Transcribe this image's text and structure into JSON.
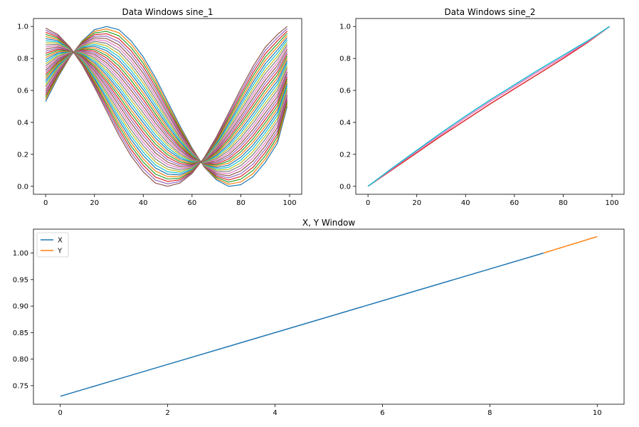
{
  "colors": [
    "#1f77b4",
    "#ff7f0e",
    "#2ca02c",
    "#d62728",
    "#9467bd",
    "#8c564b",
    "#e377c2",
    "#7f7f7f",
    "#bcbd22",
    "#17becf"
  ],
  "chart_data": [
    {
      "type": "line",
      "title": "Data Windows sine_1",
      "xlabel": "",
      "ylabel": "",
      "xlim": [
        -5,
        104.95
      ],
      "ylim": [
        -0.05,
        1.05
      ],
      "xticks": [
        0,
        20,
        40,
        60,
        80,
        100
      ],
      "xtick_labels": [
        "0",
        "20",
        "40",
        "60",
        "80",
        "100"
      ],
      "yticks": [
        0.0,
        0.2,
        0.4,
        0.6,
        0.8,
        1.0
      ],
      "ytick_labels": [
        "0.0",
        "0.2",
        "0.4",
        "0.6",
        "0.8",
        "1.0"
      ],
      "grid": false,
      "legend": false,
      "window_count": 36,
      "x": [
        0,
        5,
        10,
        15,
        20,
        25,
        30,
        35,
        40,
        45,
        50,
        55,
        60,
        65,
        70,
        75,
        80,
        85,
        90,
        95,
        99
      ],
      "series": [
        {
          "values": [
            0.53,
            0.68,
            0.81,
            0.91,
            0.98,
            1.0,
            0.98,
            0.91,
            0.81,
            0.68,
            0.53,
            0.38,
            0.24,
            0.12,
            0.04,
            0.0,
            0.01,
            0.06,
            0.15,
            0.27,
            0.5
          ]
        },
        {
          "values": [
            0.99,
            0.95,
            0.87,
            0.76,
            0.62,
            0.47,
            0.32,
            0.19,
            0.09,
            0.02,
            0.0,
            0.02,
            0.08,
            0.18,
            0.31,
            0.46,
            0.61,
            0.75,
            0.87,
            0.95,
            1.0
          ]
        }
      ]
    },
    {
      "type": "line",
      "title": "Data Windows sine_2",
      "xlabel": "",
      "ylabel": "",
      "xlim": [
        -5,
        104.95
      ],
      "ylim": [
        -0.05,
        1.05
      ],
      "xticks": [
        0,
        20,
        40,
        60,
        80,
        100
      ],
      "xtick_labels": [
        "0",
        "20",
        "40",
        "60",
        "80",
        "100"
      ],
      "yticks": [
        0.0,
        0.2,
        0.4,
        0.6,
        0.8,
        1.0
      ],
      "ytick_labels": [
        "0.0",
        "0.2",
        "0.4",
        "0.6",
        "0.8",
        "1.0"
      ],
      "grid": false,
      "legend": false,
      "x": [
        0,
        10,
        20,
        30,
        40,
        50,
        60,
        70,
        80,
        90,
        99
      ],
      "series": [
        {
          "values": [
            0.0,
            0.105,
            0.21,
            0.315,
            0.415,
            0.515,
            0.61,
            0.705,
            0.8,
            0.9,
            1.0
          ]
        },
        {
          "values": [
            0.0,
            0.11,
            0.22,
            0.325,
            0.43,
            0.53,
            0.625,
            0.72,
            0.81,
            0.905,
            1.0
          ]
        },
        {
          "values": [
            0.0,
            0.115,
            0.225,
            0.335,
            0.44,
            0.54,
            0.635,
            0.73,
            0.82,
            0.91,
            1.0
          ]
        }
      ]
    },
    {
      "type": "line",
      "title": "X, Y Window",
      "xlabel": "",
      "ylabel": "",
      "xlim": [
        -0.5,
        10.5
      ],
      "ylim": [
        0.715,
        1.045
      ],
      "xticks": [
        0,
        2,
        4,
        6,
        8,
        10
      ],
      "xtick_labels": [
        "0",
        "2",
        "4",
        "6",
        "8",
        "10"
      ],
      "yticks": [
        0.75,
        0.8,
        0.85,
        0.9,
        0.95,
        1.0
      ],
      "ytick_labels": [
        "0.75",
        "0.80",
        "0.85",
        "0.90",
        "0.95",
        "1.00"
      ],
      "grid": false,
      "legend": true,
      "legend_position": "upper-left",
      "series": [
        {
          "name": "X",
          "color": "#1f77b4",
          "x": [
            0,
            1,
            2,
            3,
            4,
            5,
            6,
            7,
            8,
            9
          ],
          "values": [
            0.73,
            0.76,
            0.79,
            0.82,
            0.85,
            0.88,
            0.91,
            0.94,
            0.97,
            1.0
          ]
        },
        {
          "name": "Y",
          "color": "#ff7f0e",
          "x": [
            9,
            10
          ],
          "values": [
            1.0,
            1.031
          ]
        }
      ]
    }
  ]
}
